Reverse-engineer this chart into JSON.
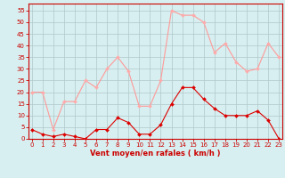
{
  "hours": [
    0,
    1,
    2,
    3,
    4,
    5,
    6,
    7,
    8,
    9,
    10,
    11,
    12,
    13,
    14,
    15,
    16,
    17,
    18,
    19,
    20,
    21,
    22,
    23
  ],
  "wind_avg": [
    4,
    2,
    1,
    2,
    1,
    0,
    4,
    4,
    9,
    7,
    2,
    2,
    6,
    15,
    22,
    22,
    17,
    13,
    10,
    10,
    10,
    12,
    8,
    0
  ],
  "wind_gust": [
    20,
    20,
    4,
    16,
    16,
    25,
    22,
    30,
    35,
    29,
    14,
    14,
    25,
    55,
    53,
    53,
    50,
    37,
    41,
    33,
    29,
    30,
    41,
    35
  ],
  "bg_color": "#d7eff0",
  "grid_color": "#b0c8c8",
  "line_avg_color": "#dd0000",
  "line_gust_color": "#ff9999",
  "marker_avg_color": "#dd0000",
  "marker_gust_color": "#ffaaaa",
  "xlabel": "Vent moyen/en rafales ( km/h )",
  "xlabel_color": "#cc0000",
  "tick_color": "#cc0000",
  "spine_color": "#cc0000",
  "ylim_min": 0,
  "ylim_max": 58,
  "ytick_step": 5,
  "ytick_max": 55,
  "xlim_min": -0.3,
  "xlim_max": 23.3
}
